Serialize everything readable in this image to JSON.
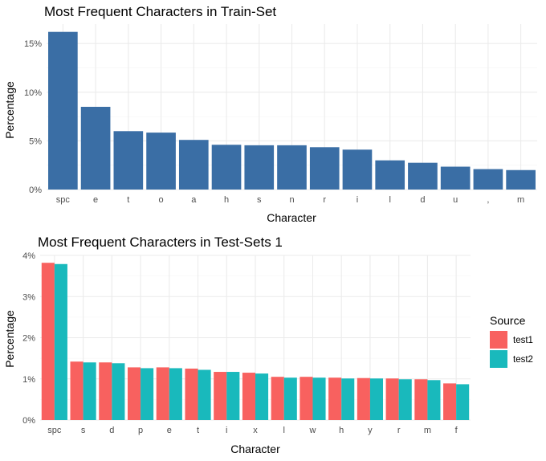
{
  "chart_data": [
    {
      "type": "bar",
      "title": "Most Frequent Characters in Train-Set",
      "xlabel": "Character",
      "ylabel": "Percentage",
      "categories": [
        "spc",
        "e",
        "t",
        "o",
        "a",
        "h",
        "s",
        "n",
        "r",
        "i",
        "l",
        "d",
        "u",
        ",",
        "m"
      ],
      "values": [
        16.2,
        8.5,
        6.0,
        5.85,
        5.1,
        4.6,
        4.55,
        4.55,
        4.35,
        4.1,
        3.0,
        2.75,
        2.35,
        2.1,
        2.0
      ],
      "ylim": [
        0,
        17
      ],
      "yticks": [
        0,
        5,
        10,
        15
      ],
      "ytick_labels": [
        "0%",
        "5%",
        "10%",
        "15%"
      ],
      "grid": true,
      "color": "#3a6ea5"
    },
    {
      "type": "bar",
      "title": "Most Frequent Characters in Test-Sets 1",
      "xlabel": "Character",
      "ylabel": "Percentage",
      "categories": [
        "spc",
        "s",
        "d",
        "p",
        "e",
        "t",
        "i",
        "x",
        "l",
        "w",
        "h",
        "y",
        "r",
        "m",
        "f"
      ],
      "series": [
        {
          "name": "test1",
          "color": "#f8615f",
          "values": [
            3.82,
            1.42,
            1.4,
            1.28,
            1.28,
            1.25,
            1.17,
            1.15,
            1.05,
            1.05,
            1.03,
            1.02,
            1.01,
            0.99,
            0.89
          ]
        },
        {
          "name": "test2",
          "color": "#19b9bc",
          "values": [
            3.79,
            1.4,
            1.38,
            1.26,
            1.26,
            1.22,
            1.17,
            1.13,
            1.03,
            1.03,
            1.01,
            1.01,
            0.99,
            0.97,
            0.87
          ]
        }
      ],
      "ylim": [
        0,
        4
      ],
      "yticks": [
        0,
        1,
        2,
        3,
        4
      ],
      "ytick_labels": [
        "0%",
        "1%",
        "2%",
        "3%",
        "4%"
      ],
      "legend_title": "Source",
      "legend_position": "right",
      "grid": true
    }
  ]
}
